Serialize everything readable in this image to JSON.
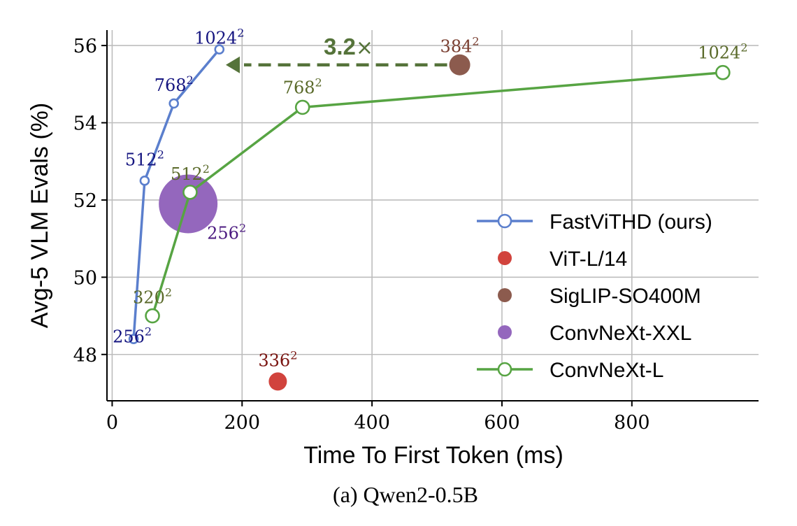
{
  "chart_data": {
    "type": "line",
    "xlabel": "Time To First Token (ms)",
    "ylabel": "Avg-5 VLM Evals (%)",
    "caption": "(a) Qwen2-0.5B",
    "xlim": [
      -8,
      995
    ],
    "ylim": [
      46.8,
      56.4
    ],
    "xticks": [
      0,
      200,
      400,
      600,
      800
    ],
    "yticks": [
      48,
      50,
      52,
      54,
      56
    ],
    "grid": true,
    "legend_position": "lower-right",
    "series": [
      {
        "name": "FastViTHD (ours)",
        "style": "line",
        "color": "#5b7fcd",
        "label_color": "#151580",
        "points": [
          {
            "x": 33,
            "y": 48.4,
            "label": "256"
          },
          {
            "x": 50,
            "y": 52.5,
            "label": "512"
          },
          {
            "x": 95,
            "y": 54.5,
            "label": "768"
          },
          {
            "x": 165,
            "y": 55.9,
            "label": "1024"
          }
        ]
      },
      {
        "name": "ViT-L/14",
        "style": "point",
        "color": "#d1433d",
        "label_color": "#7a1410",
        "points": [
          {
            "x": 255,
            "y": 47.3,
            "label": "336"
          }
        ]
      },
      {
        "name": "SigLIP-SO400M",
        "style": "point",
        "color": "#8c5b4e",
        "label_color": "#7a3e30",
        "points": [
          {
            "x": 535,
            "y": 55.5,
            "label": "384"
          }
        ]
      },
      {
        "name": "ConvNeXt-XXL",
        "style": "point",
        "color": "#9467bd",
        "label_color": "#4b1a80",
        "points": [
          {
            "x": 117,
            "y": 51.9,
            "label": "256"
          }
        ]
      },
      {
        "name": "ConvNeXt-L",
        "style": "line",
        "color": "#57a443",
        "label_color": "#5a6a2a",
        "points": [
          {
            "x": 62,
            "y": 49.0,
            "label": "320"
          },
          {
            "x": 120,
            "y": 52.2,
            "label": "512"
          },
          {
            "x": 293,
            "y": 54.4,
            "label": "768"
          },
          {
            "x": 940,
            "y": 55.3,
            "label": "1024"
          }
        ]
      }
    ],
    "annotation": {
      "text_bold": "3.2",
      "text_symbol": "×",
      "from_x": 535,
      "to_x": 190,
      "y": 55.5,
      "color": "#55733a"
    }
  }
}
